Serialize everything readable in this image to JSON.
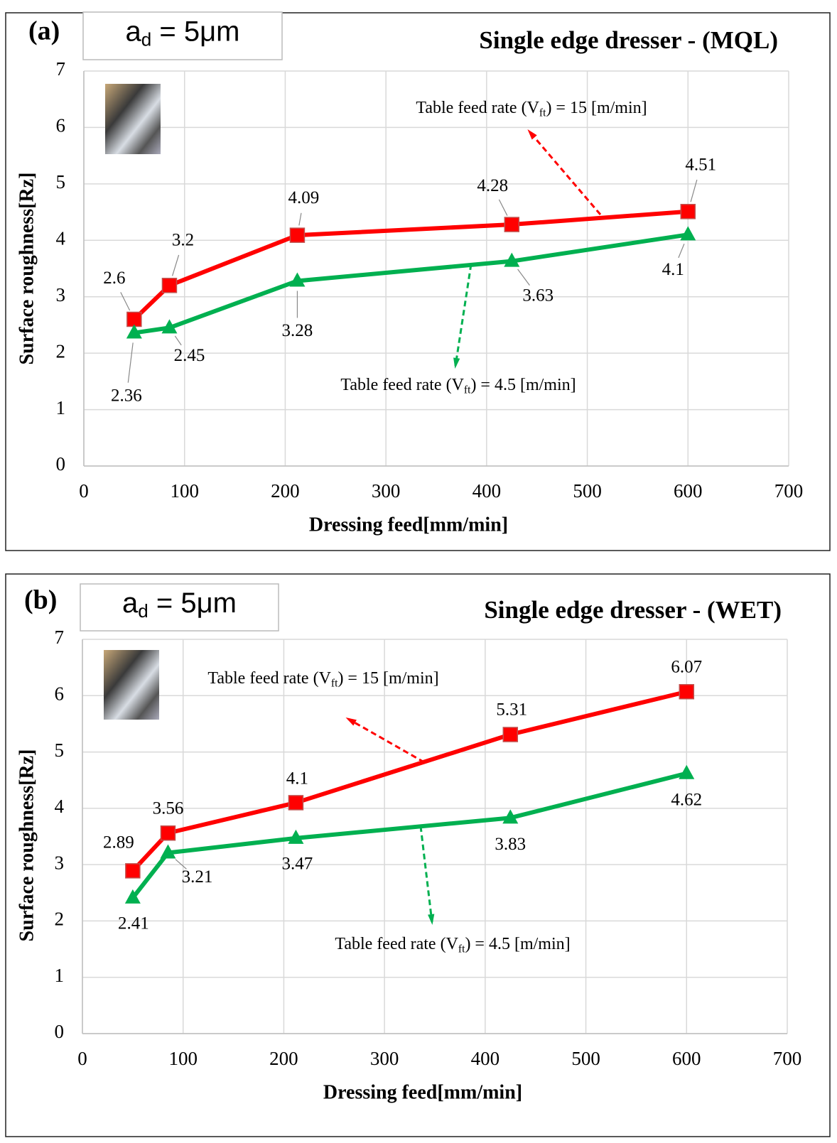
{
  "chart_data": [
    {
      "type": "line",
      "panel_label": "(a)",
      "title": "Single edge dresser - (MQL)",
      "box_label": {
        "base": "a",
        "sub": "d",
        "rest": " = 5μm"
      },
      "x_label": "Dressing feed[mm/min]",
      "y_label": "Surface roughness[Rz]",
      "x": [
        50,
        85,
        212,
        425,
        600
      ],
      "series": [
        {
          "color": "#ff0000",
          "marker": "square",
          "values": [
            2.6,
            3.2,
            4.09,
            4.28,
            4.51
          ],
          "note": {
            "pre": "Table feed rate (V",
            "sub": "ft",
            "post": ") = 15 [m/min]"
          }
        },
        {
          "color": "#00b050",
          "marker": "triangle",
          "values": [
            2.36,
            2.45,
            3.28,
            3.63,
            4.1
          ],
          "note": {
            "pre": "Table feed rate (V",
            "sub": "ft",
            "post": ") = 4.5 [m/min]"
          }
        }
      ],
      "xlim": [
        0,
        700
      ],
      "xticks": [
        0,
        100,
        200,
        300,
        400,
        500,
        600,
        700
      ],
      "ylim": [
        0,
        7
      ],
      "yticks": [
        0,
        1,
        2,
        3,
        4,
        5,
        6,
        7
      ],
      "grid": true
    },
    {
      "type": "line",
      "panel_label": "(b)",
      "title": "Single edge dresser - (WET)",
      "box_label": {
        "base": "a",
        "sub": "d",
        "rest": " = 5μm"
      },
      "x_label": "Dressing feed[mm/min]",
      "y_label": "Surface roughness[Rz]",
      "x": [
        50,
        85,
        212,
        425,
        600
      ],
      "series": [
        {
          "color": "#ff0000",
          "marker": "square",
          "values": [
            2.89,
            3.56,
            4.1,
            5.31,
            6.07
          ],
          "note": {
            "pre": "Table feed rate (V",
            "sub": "ft",
            "post": ") = 15 [m/min]"
          }
        },
        {
          "color": "#00b050",
          "marker": "triangle",
          "values": [
            2.41,
            3.21,
            3.47,
            3.83,
            4.62
          ],
          "note": {
            "pre": "Table feed rate (V",
            "sub": "ft",
            "post": ") = 4.5 [m/min]"
          }
        }
      ],
      "xlim": [
        0,
        700
      ],
      "xticks": [
        0,
        100,
        200,
        300,
        400,
        500,
        600,
        700
      ],
      "ylim": [
        0,
        7
      ],
      "yticks": [
        0,
        1,
        2,
        3,
        4,
        5,
        6,
        7
      ],
      "grid": true
    }
  ]
}
